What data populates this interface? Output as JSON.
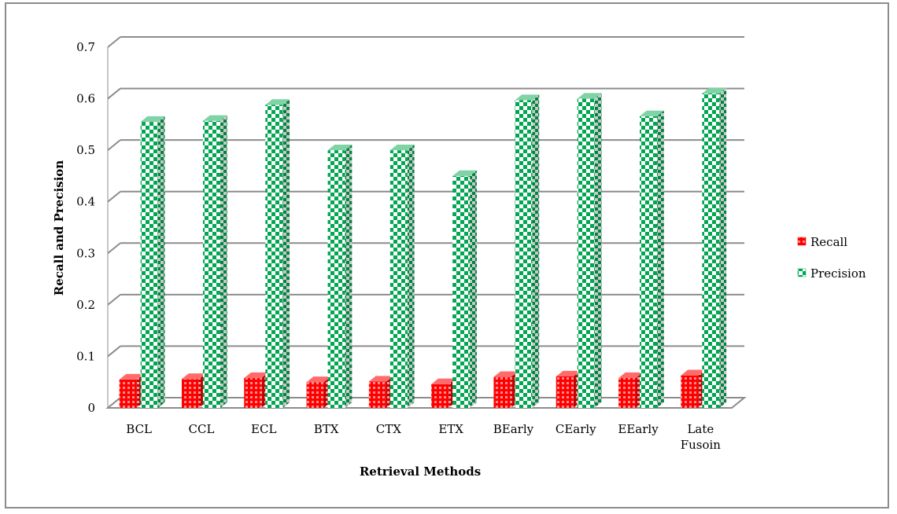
{
  "chart_data": {
    "type": "bar",
    "categories": [
      "BCL",
      "CCL",
      "ECL",
      "BTX",
      "CTX",
      "ETX",
      "BEarly",
      "CEarly",
      "EEarly",
      "Late Fusoin"
    ],
    "category_lines": [
      [
        "BCL"
      ],
      [
        "CCL"
      ],
      [
        "ECL"
      ],
      [
        "BTX"
      ],
      [
        "CTX"
      ],
      [
        "ETX"
      ],
      [
        "BEarly"
      ],
      [
        "CEarly"
      ],
      [
        "EEarly"
      ],
      [
        "Late",
        "Fusoin"
      ]
    ],
    "series": [
      {
        "name": "Recall",
        "color": "#ff0000",
        "values": [
          0.055,
          0.056,
          0.058,
          0.05,
          0.051,
          0.046,
          0.06,
          0.061,
          0.058,
          0.063
        ]
      },
      {
        "name": "Precision",
        "color": "#00a650",
        "values": [
          0.555,
          0.557,
          0.588,
          0.5,
          0.5,
          0.45,
          0.597,
          0.6,
          0.566,
          0.61
        ]
      }
    ],
    "xlabel": "Retrieval Methods",
    "ylabel": "Recall and Precision",
    "ylim": [
      0,
      0.7
    ],
    "yticks": [
      "0",
      "0.1",
      "0.2",
      "0.3",
      "0.4",
      "0.5",
      "0.6",
      "0.7"
    ],
    "grid": true,
    "legend_position": "right",
    "style": "3d"
  }
}
